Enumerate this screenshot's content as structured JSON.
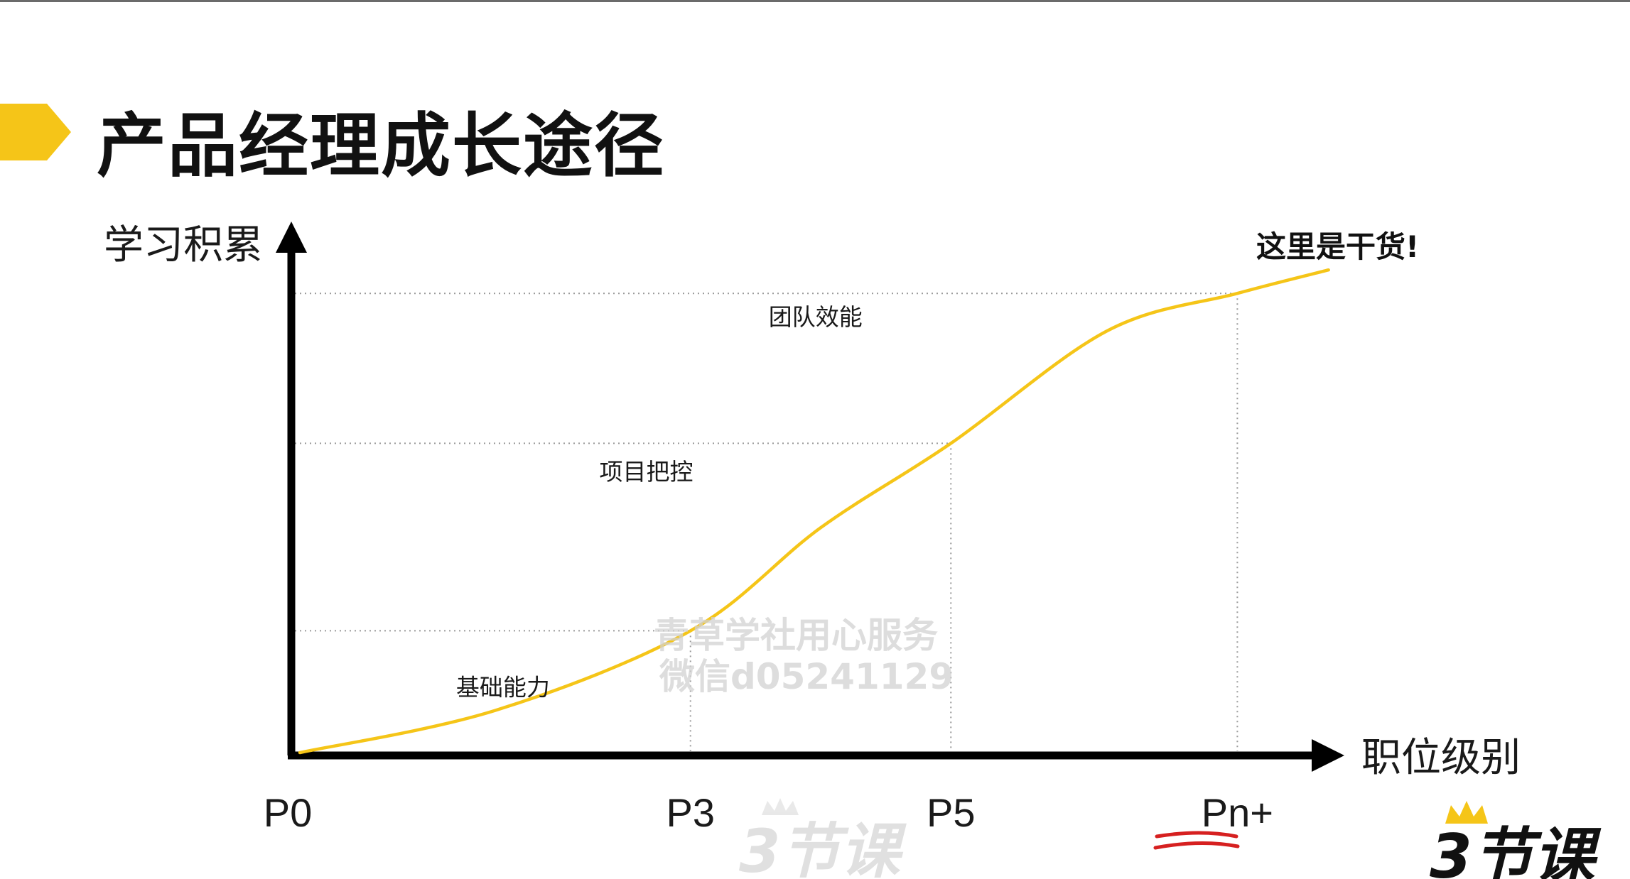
{
  "slide": {
    "title": "产品经理成长途径",
    "accent_color": "#f5c518"
  },
  "watermark": {
    "line1": "青草学社用心服务",
    "line2": "微信d05241129"
  },
  "logos": {
    "center": "3节课",
    "corner": "3节课",
    "crown_icon": "crown-icon"
  },
  "chart_data": {
    "type": "line",
    "xlabel": "职位级别",
    "ylabel": "学习积累",
    "x_ticks": [
      "P0",
      "P3",
      "P5",
      "Pn+"
    ],
    "highlighted_tick": "Pn+",
    "highlight_color": "#d62020",
    "series": [
      {
        "color": "#f5c518",
        "shape": "s-curve",
        "points": [
          {
            "x": 0,
            "y": 0.0
          },
          {
            "x": 1.5,
            "y": 0.09
          },
          {
            "x": 3,
            "y": 0.26
          },
          {
            "x": 4,
            "y": 0.48
          },
          {
            "x": 5,
            "y": 0.66
          },
          {
            "x": 6.2,
            "y": 0.9
          },
          {
            "x": 7.2,
            "y": 0.98
          },
          {
            "x": 7.9,
            "y": 1.03
          }
        ]
      }
    ],
    "guide_levels": [
      {
        "x_tick": "P3",
        "y": 0.26
      },
      {
        "x_tick": "P5",
        "y": 0.66
      },
      {
        "x_tick": "Pn+",
        "y": 0.98
      }
    ],
    "stages": [
      {
        "label": "基础能力",
        "x": 1.2,
        "y": 0.14
      },
      {
        "label": "项目把控",
        "x": 2.3,
        "y": 0.6
      },
      {
        "label": "团队效能",
        "x": 3.6,
        "y": 0.93
      }
    ],
    "callout": "这里是干货!",
    "grid": "dotted guides at stage levels",
    "x_ordinal_positions": {
      "P0": 0,
      "P3": 3,
      "P5": 5,
      "Pn+": 7.2
    }
  }
}
